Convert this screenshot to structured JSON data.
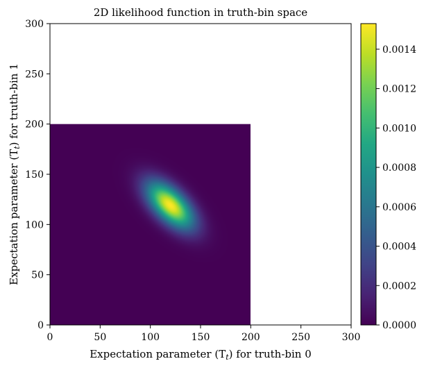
{
  "chart_data": {
    "type": "heatmap",
    "title": "2D likelihood function in truth-bin space",
    "xlabel": "Expectation parameter (T",
    "xlabel_sub": "t",
    "xlabel_suffix": ") for truth-bin 0",
    "ylabel": "Expectation parameter (T",
    "ylabel_sub": "t",
    "ylabel_suffix": ") for truth-bin 1",
    "xlim": [
      0,
      300
    ],
    "ylim": [
      0,
      300
    ],
    "x_ticks": [
      0,
      50,
      100,
      150,
      200,
      250,
      300
    ],
    "x_tick_labels": [
      "0",
      "50",
      "100",
      "150",
      "200",
      "250",
      "300"
    ],
    "y_ticks": [
      0,
      50,
      100,
      150,
      200,
      250,
      300
    ],
    "y_tick_labels": [
      "0",
      "50",
      "100",
      "150",
      "200",
      "250",
      "300"
    ],
    "grid": false,
    "data_extent": {
      "x": [
        0,
        200
      ],
      "y": [
        0,
        200
      ]
    },
    "distribution": {
      "kind": "bivariate-gaussian",
      "peak_x": 120,
      "peak_y": 119,
      "sigma_x": 16,
      "sigma_y": 16,
      "correlation": -0.6,
      "peak_value": 0.00153
    },
    "colorbar": {
      "colormap": "viridis",
      "min": 0.0,
      "max": 0.00153,
      "ticks": [
        0.0,
        0.0002,
        0.0004,
        0.0006,
        0.0008,
        0.001,
        0.0012,
        0.0014
      ],
      "tick_labels": [
        "0.0000",
        "0.0002",
        "0.0004",
        "0.0006",
        "0.0008",
        "0.0010",
        "0.0012",
        "0.0014"
      ]
    }
  }
}
